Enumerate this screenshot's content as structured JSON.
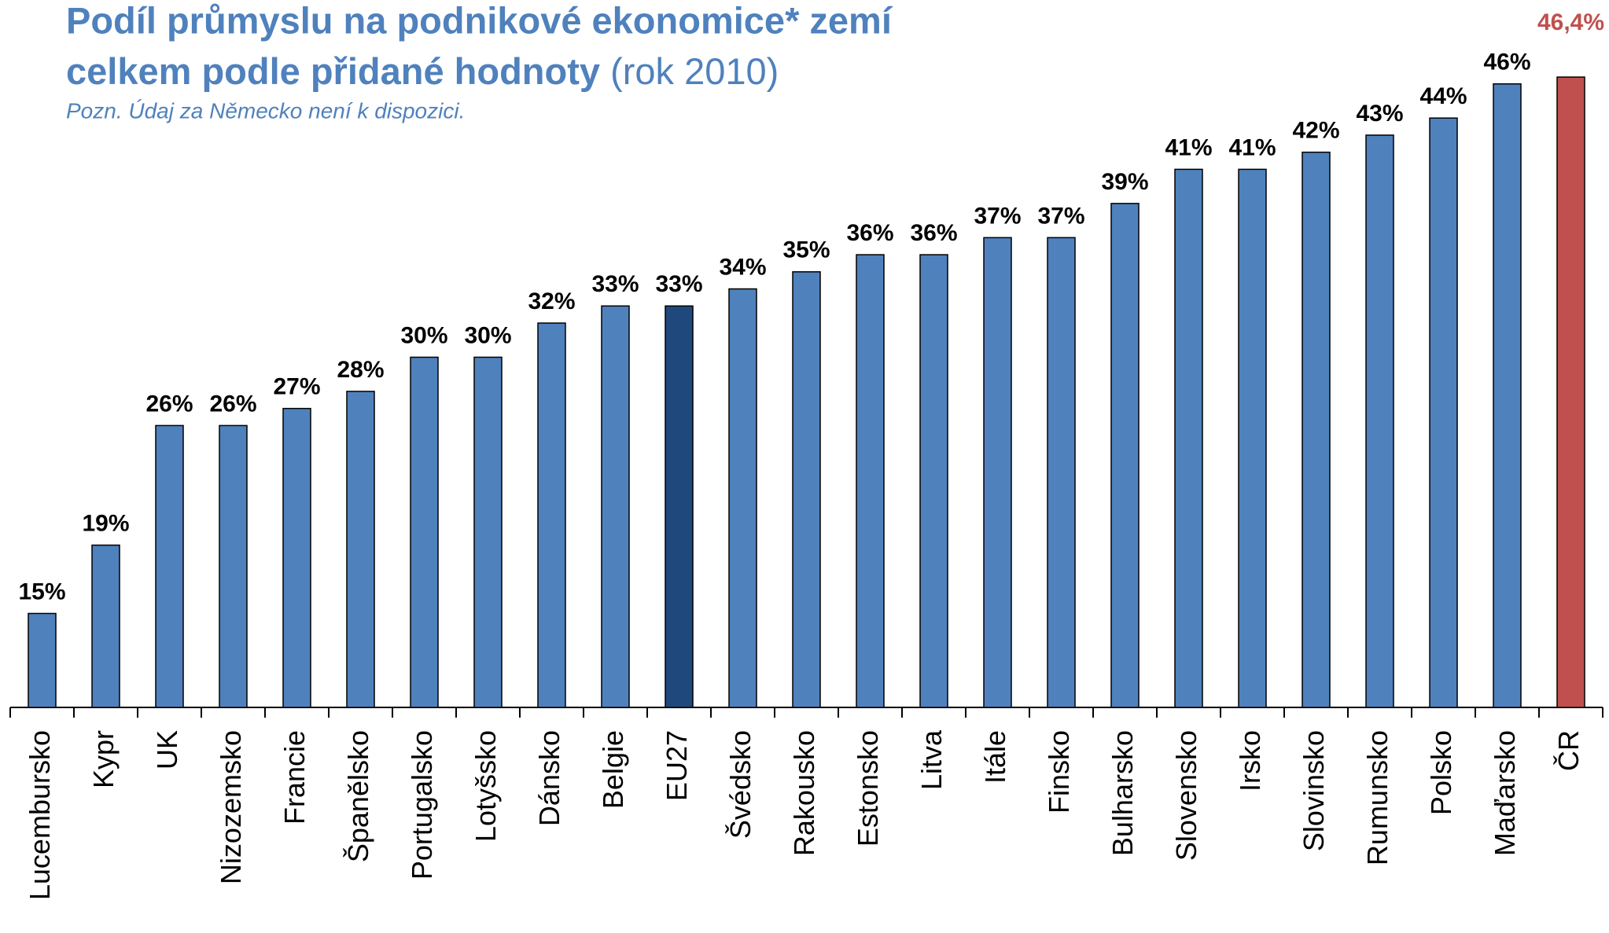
{
  "chart_data": {
    "type": "bar",
    "title": "Podíl průmyslu na podnikové ekonomice* zemí",
    "title_line2": "celkem podle přidané hodnoty",
    "title_suffix": "(rok 2010)",
    "subtitle": "Pozn. Údaj za Německo není k dispozici.",
    "categories": [
      "Lucembursko",
      "Kypr",
      "UK",
      "Nizozemsko",
      "Francie",
      "Španělsko",
      "Portugalsko",
      "Lotyšsko",
      "Dánsko",
      "Belgie",
      "EU27",
      "Švédsko",
      "Rakousko",
      "Estonsko",
      "Litva",
      "Itále",
      "Finsko",
      "Bulharsko",
      "Slovensko",
      "Irsko",
      "Slovinsko",
      "Rumunsko",
      "Polsko",
      "Maďarsko",
      "ČR"
    ],
    "values": [
      15,
      19,
      26,
      26,
      27,
      28,
      30,
      30,
      32,
      33,
      33,
      34,
      35,
      36,
      36,
      37,
      37,
      39,
      41,
      41,
      42,
      43,
      44,
      46,
      46.4
    ],
    "value_labels": [
      "15%",
      "19%",
      "26%",
      "26%",
      "27%",
      "28%",
      "30%",
      "30%",
      "32%",
      "33%",
      "33%",
      "34%",
      "35%",
      "36%",
      "36%",
      "37%",
      "37%",
      "39%",
      "41%",
      "41%",
      "42%",
      "43%",
      "44%",
      "46%",
      "46,4%"
    ],
    "colors": [
      "#4f81bd",
      "#4f81bd",
      "#4f81bd",
      "#4f81bd",
      "#4f81bd",
      "#4f81bd",
      "#4f81bd",
      "#4f81bd",
      "#4f81bd",
      "#4f81bd",
      "#1f497d",
      "#4f81bd",
      "#4f81bd",
      "#4f81bd",
      "#4f81bd",
      "#4f81bd",
      "#4f81bd",
      "#4f81bd",
      "#4f81bd",
      "#4f81bd",
      "#4f81bd",
      "#4f81bd",
      "#4f81bd",
      "#4f81bd",
      "#c0504d"
    ],
    "ylim": [
      9.5,
      47
    ],
    "grid": false
  }
}
